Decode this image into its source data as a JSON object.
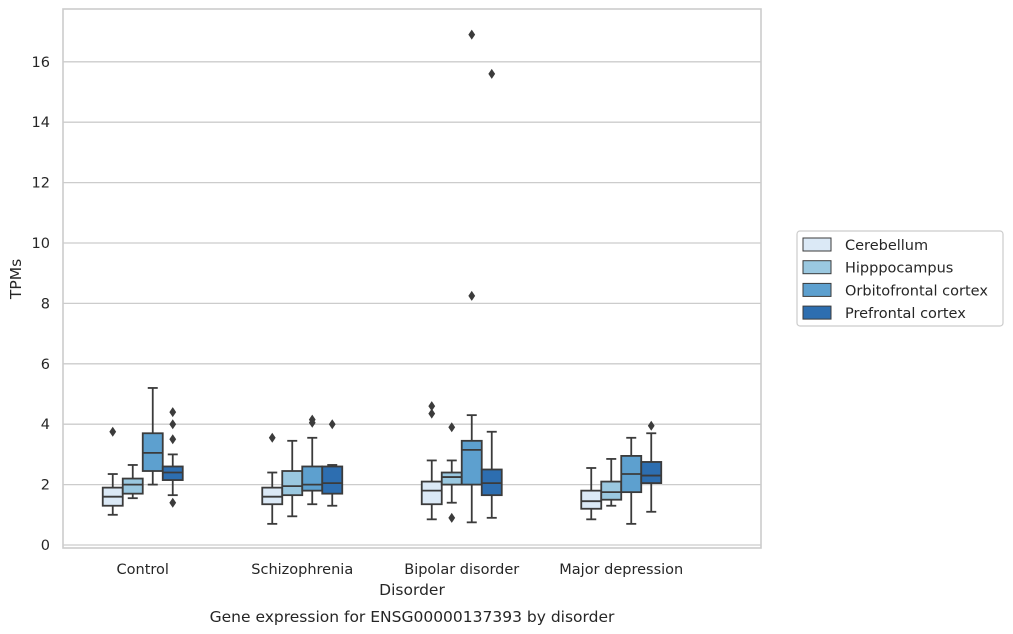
{
  "chart_data": {
    "type": "box",
    "title": "",
    "caption": "Gene expression for ENSG00000137393 by disorder",
    "xlabel": "Disorder",
    "ylabel": "TPMs",
    "ylim": [
      -0.1,
      17.8
    ],
    "yticks": [
      0,
      2,
      4,
      6,
      8,
      10,
      12,
      14,
      16
    ],
    "grid": "horizontal",
    "legend_placement": "right",
    "categories": [
      "Control",
      "Schizophrenia",
      "Bipolar disorder",
      "Major depression"
    ],
    "series": [
      {
        "name": "Cerebellum",
        "color": "#dbe9f6",
        "boxes": [
          {
            "whislo": 1.0,
            "q1": 1.3,
            "med": 1.6,
            "q3": 1.9,
            "whishi": 2.35,
            "fliers": [
              3.75
            ]
          },
          {
            "whislo": 0.7,
            "q1": 1.35,
            "med": 1.6,
            "q3": 1.9,
            "whishi": 2.4,
            "fliers": [
              3.55
            ]
          },
          {
            "whislo": 0.85,
            "q1": 1.35,
            "med": 1.8,
            "q3": 2.1,
            "whishi": 2.8,
            "fliers": [
              4.35,
              4.6
            ]
          },
          {
            "whislo": 0.85,
            "q1": 1.2,
            "med": 1.45,
            "q3": 1.8,
            "whishi": 2.55,
            "fliers": []
          }
        ]
      },
      {
        "name": "Hipppocampus",
        "color": "#9ac8e0",
        "boxes": [
          {
            "whislo": 1.55,
            "q1": 1.7,
            "med": 2.0,
            "q3": 2.2,
            "whishi": 2.65,
            "fliers": []
          },
          {
            "whislo": 0.95,
            "q1": 1.65,
            "med": 1.95,
            "q3": 2.45,
            "whishi": 3.45,
            "fliers": []
          },
          {
            "whislo": 1.4,
            "q1": 2.0,
            "med": 2.25,
            "q3": 2.4,
            "whishi": 2.8,
            "fliers": [
              3.9,
              0.9
            ]
          },
          {
            "whislo": 1.3,
            "q1": 1.5,
            "med": 1.75,
            "q3": 2.1,
            "whishi": 2.85,
            "fliers": []
          }
        ]
      },
      {
        "name": "Orbitofrontal cortex",
        "color": "#5da0cf",
        "boxes": [
          {
            "whislo": 2.0,
            "q1": 2.45,
            "med": 3.05,
            "q3": 3.7,
            "whishi": 5.2,
            "fliers": []
          },
          {
            "whislo": 1.35,
            "q1": 1.8,
            "med": 2.0,
            "q3": 2.6,
            "whishi": 3.55,
            "fliers": [
              4.15,
              4.05
            ]
          },
          {
            "whislo": 0.75,
            "q1": 2.0,
            "med": 3.15,
            "q3": 3.45,
            "whishi": 4.3,
            "fliers": [
              8.25,
              16.9
            ]
          },
          {
            "whislo": 0.7,
            "q1": 1.75,
            "med": 2.35,
            "q3": 2.95,
            "whishi": 3.55,
            "fliers": []
          }
        ]
      },
      {
        "name": "Prefrontal cortex",
        "color": "#2d6eb0",
        "boxes": [
          {
            "whislo": 1.65,
            "q1": 2.15,
            "med": 2.4,
            "q3": 2.6,
            "whishi": 3.0,
            "fliers": [
              4.4,
              4.0,
              3.5,
              1.4
            ]
          },
          {
            "whislo": 1.3,
            "q1": 1.7,
            "med": 2.05,
            "q3": 2.6,
            "whishi": 2.65,
            "fliers": [
              4.0
            ]
          },
          {
            "whislo": 0.9,
            "q1": 1.65,
            "med": 2.05,
            "q3": 2.5,
            "whishi": 3.75,
            "fliers": [
              15.6
            ]
          },
          {
            "whislo": 1.1,
            "q1": 2.05,
            "med": 2.3,
            "q3": 2.75,
            "whishi": 3.7,
            "fliers": [
              3.95
            ]
          }
        ]
      }
    ]
  }
}
